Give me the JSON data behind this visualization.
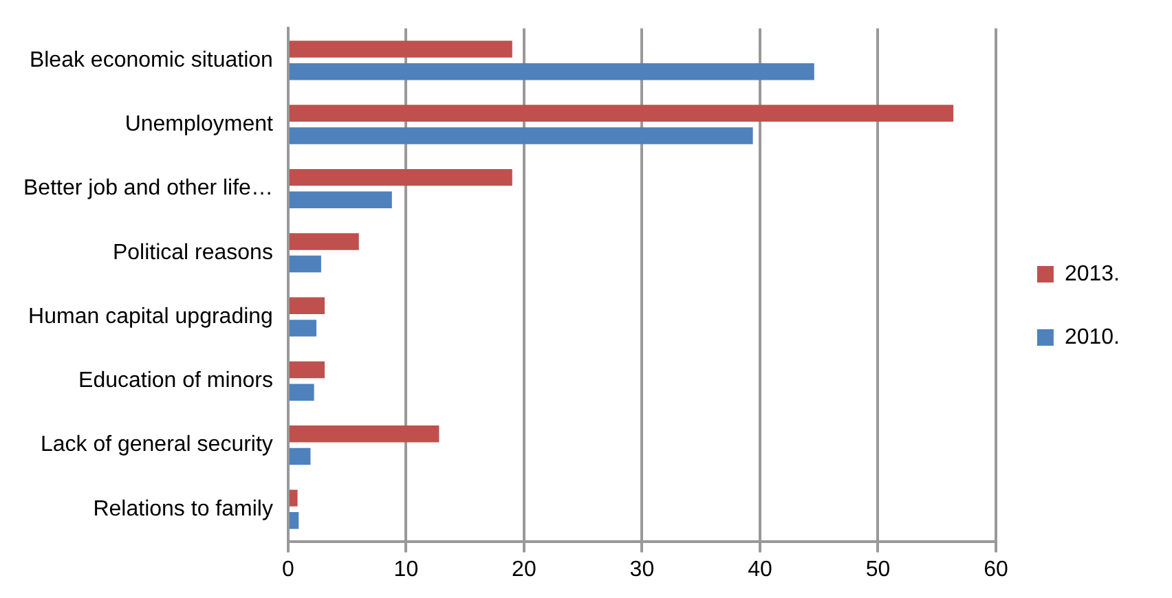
{
  "chart_data": {
    "type": "bar",
    "orientation": "horizontal",
    "categories": [
      "Bleak economic situation",
      "Unemployment",
      "Better job and other life…",
      "Political reasons",
      "Human capital upgrading",
      "Education of minors",
      "Lack of general security",
      "Relations to family"
    ],
    "series": [
      {
        "name": "2013.",
        "color": "#c0504d",
        "values": [
          19,
          56.4,
          19,
          6,
          3.1,
          3.1,
          12.8,
          0.8
        ]
      },
      {
        "name": "2010.",
        "color": "#4f81bd",
        "values": [
          44.6,
          39.4,
          8.8,
          2.8,
          2.4,
          2.2,
          1.9,
          0.9
        ]
      }
    ],
    "xlim": [
      0,
      60
    ],
    "xticks": [
      0,
      10,
      20,
      30,
      40,
      50,
      60
    ],
    "grid": "x",
    "legend": "right"
  }
}
